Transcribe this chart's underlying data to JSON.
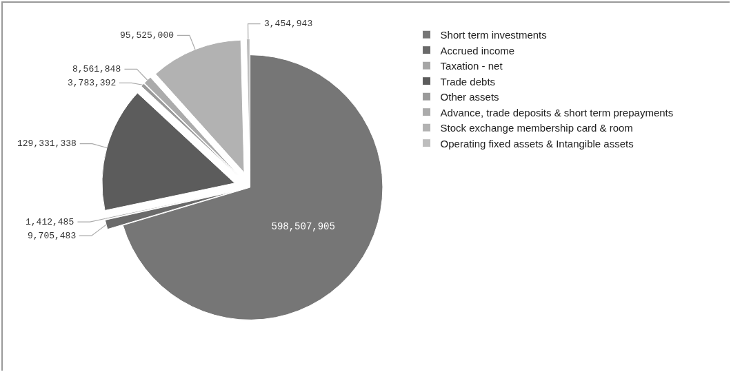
{
  "chart_data": {
    "type": "pie",
    "categories": [
      "Short term investments",
      "Accrued income",
      "Taxation - net",
      "Trade debts",
      "Other assets",
      "Advance, trade deposits & short term prepayments",
      "Stock exchange membership card & room",
      "Operating fixed assets & Intangible assets"
    ],
    "values": [
      598507905,
      9705483,
      1412485,
      129331338,
      3783392,
      8561848,
      95525000,
      3454943
    ],
    "colors": [
      "#767676",
      "#6a6a6a",
      "#a6a6a6",
      "#5c5c5c",
      "#9a9a9a",
      "#ababab",
      "#b2b2b2",
      "#bdbdbd"
    ],
    "value_labels": [
      "598,507,905",
      "9,705,483",
      "1,412,485",
      "129,331,338",
      "3,783,392",
      "8,561,848",
      "95,525,000",
      "3,454,943"
    ],
    "legend": "right"
  }
}
